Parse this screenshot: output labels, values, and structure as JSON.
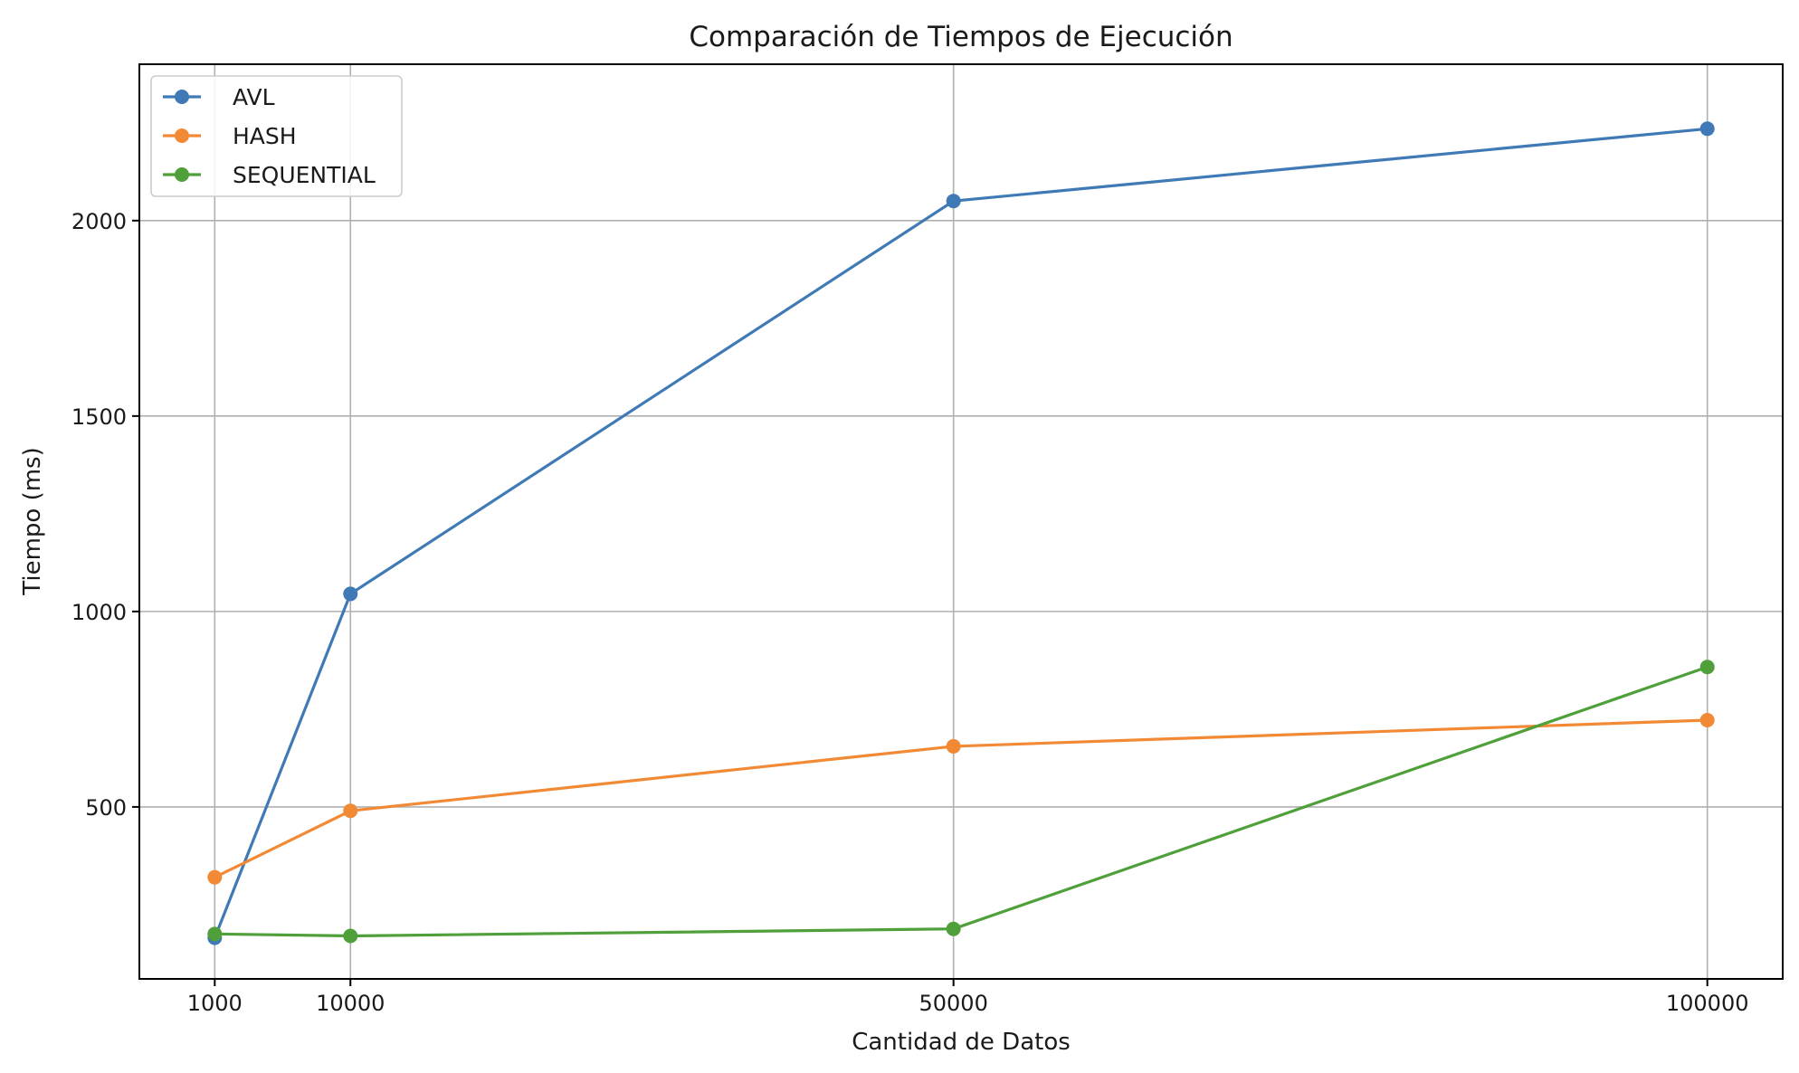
{
  "chart_data": {
    "type": "line",
    "title": "Comparación de Tiempos de Ejecución",
    "xlabel": "Cantidad de Datos",
    "ylabel": "Tiempo (ms)",
    "x": [
      1000,
      10000,
      50000,
      100000
    ],
    "x_ticks": [
      "1000",
      "10000",
      "50000",
      "100000"
    ],
    "y_ticks": [
      500,
      1000,
      1500,
      2000
    ],
    "xlim": [
      -4000,
      105000
    ],
    "ylim": [
      60,
      2400
    ],
    "grid": true,
    "legend_position": "top-left",
    "series": [
      {
        "name": "AVL",
        "color": "#3f7ab6",
        "values": [
          165,
          1045,
          2050,
          2235
        ]
      },
      {
        "name": "HASH",
        "color": "#f28a35",
        "values": [
          320,
          490,
          655,
          722
        ]
      },
      {
        "name": "SEQUENTIAL",
        "color": "#4fa03a",
        "values": [
          175,
          170,
          188,
          858
        ]
      }
    ]
  }
}
